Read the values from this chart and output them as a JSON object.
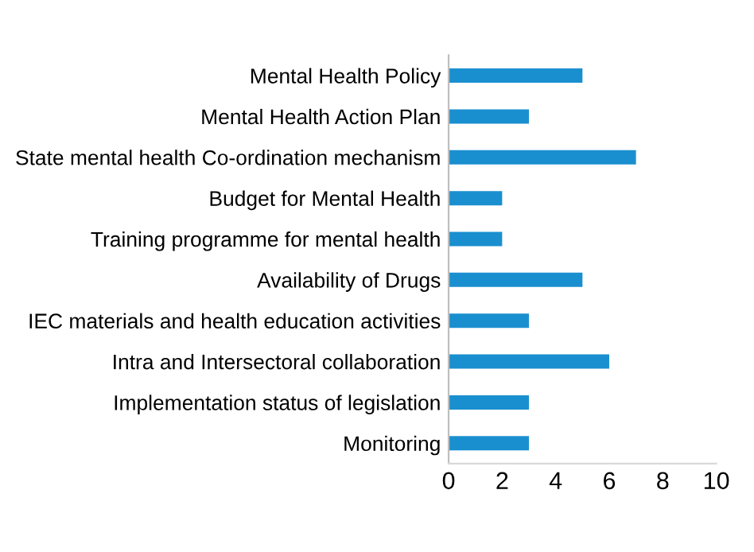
{
  "chart_data": {
    "type": "bar",
    "orientation": "horizontal",
    "categories": [
      "Mental Health Policy",
      "Mental Health Action Plan",
      "State mental health Co-ordination mechanism",
      "Budget for Mental Health",
      "Training programme for mental health",
      "Availability of Drugs",
      "IEC materials and health education activities",
      "Intra and Intersectoral collaboration",
      "Implementation status of legislation",
      "Monitoring"
    ],
    "values": [
      5,
      3,
      7,
      2,
      2,
      5,
      3,
      6,
      3,
      3
    ],
    "color": "#1a8fcf",
    "xlim": [
      0,
      10
    ],
    "xticks": [
      0,
      2,
      4,
      6,
      8,
      10
    ],
    "grid": false,
    "legend": false
  }
}
